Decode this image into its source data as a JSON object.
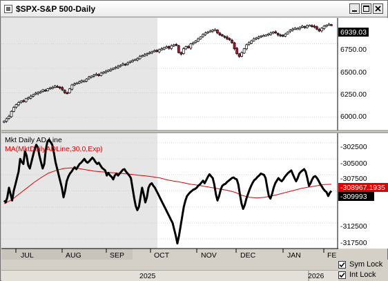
{
  "window": {
    "title": "$SPX-S&P 500-Daily",
    "icon": "chart-window-icon",
    "buttons": [
      "minimize-icon",
      "maximize-icon",
      "close-icon"
    ]
  },
  "colors": {
    "up_candle": "#ffffff",
    "down_candle": "#c8102e",
    "ad_line": "#000000",
    "moving_average": "#e00000",
    "legend_indicator": "#000000",
    "legend_ma": "#e00000",
    "shade": "#e6e6e6",
    "grid": "#cfcfcf",
    "price_box": "#000000",
    "ma_box": "#e00000"
  },
  "price_panel": {
    "axis_labels": [
      "6000.00",
      "6250.00",
      "6500.00",
      "6750.00"
    ],
    "current_price": "6939.03"
  },
  "indicator_panel": {
    "legend_line1": "Mkt Daily AD Line",
    "legend_line2": "MA(MktDailyADLine,30,0,Exp)",
    "axis_labels": [
      "-302500",
      "-305000",
      "-307500",
      "-310000",
      "-312500",
      "-315000",
      "-317500"
    ],
    "current_ma": "-308967.1935",
    "current_value": "-309993"
  },
  "x_axis": {
    "months": [
      "JUL",
      "AUG",
      "SEP",
      "OCT",
      "NOV",
      "DEC",
      "JAN",
      "FE"
    ],
    "years": [
      "2025",
      "2026"
    ]
  },
  "controls": {
    "sym_lock_label": "Sym Lock",
    "sym_lock_checked": true,
    "int_lock_label": "Int Lock",
    "int_lock_checked": true
  },
  "chart_data": [
    {
      "type": "candlestick",
      "title": "$SPX-S&P 500-Daily",
      "x_range": [
        "2025-06-23",
        "2026-01-30"
      ],
      "ylim": [
        5900,
        7000
      ],
      "last_value": 6939.03,
      "series": [
        {
          "close": [
            5960,
            5985,
            6010,
            6060,
            6100,
            6130,
            6150,
            6165,
            6160,
            6190,
            6200,
            6215,
            6230,
            6245,
            6255,
            6260,
            6280,
            6270,
            6290,
            6300,
            6305,
            6320,
            6310,
            6300,
            6280,
            6250,
            6245,
            6290,
            6330,
            6340,
            6350,
            6360,
            6375,
            6370,
            6390,
            6410,
            6420,
            6430,
            6440,
            6425,
            6450,
            6460,
            6470,
            6480,
            6490,
            6500,
            6510,
            6520,
            6530,
            6545,
            6540,
            6555,
            6570,
            6580,
            6590,
            6600,
            6620,
            6630,
            6640,
            6650,
            6660,
            6670,
            6680,
            6670,
            6690,
            6700,
            6710,
            6720,
            6705,
            6730,
            6740,
            6735,
            6660,
            6645,
            6700,
            6720,
            6710,
            6750,
            6760,
            6780,
            6800,
            6820,
            6845,
            6860,
            6870,
            6880,
            6890,
            6895,
            6860,
            6840,
            6830,
            6820,
            6800,
            6790,
            6760,
            6700,
            6650,
            6620,
            6660,
            6700,
            6740,
            6760,
            6780,
            6800,
            6810,
            6820,
            6830,
            6835,
            6840,
            6850,
            6860,
            6870,
            6860,
            6840,
            6835,
            6830,
            6850,
            6870,
            6890,
            6900,
            6910,
            6905,
            6920,
            6930,
            6915,
            6935,
            6940,
            6930,
            6920,
            6900,
            6880,
            6910,
            6930,
            6940,
            6950,
            6939
          ]
        }
      ]
    },
    {
      "type": "line",
      "x_range": [
        "2025-06-23",
        "2026-01-30"
      ],
      "ylim": [
        -319000,
        -301000
      ],
      "series": [
        {
          "name": "Mkt Daily AD Line",
          "values": [
            -311500,
            -311800,
            -311000,
            -309500,
            -310500,
            -311500,
            -310000,
            -309000,
            -308000,
            -307000,
            -305000,
            -305500,
            -305800,
            -303800,
            -304500,
            -306000,
            -306500,
            -305500,
            -304500,
            -303500,
            -302800,
            -303200,
            -304500,
            -305500,
            -306500,
            -305800,
            -303500,
            -302300,
            -302000,
            -302400,
            -302800,
            -304000,
            -305500,
            -306500,
            -307500,
            -308500,
            -309500,
            -311000,
            -310000,
            -308500,
            -307800,
            -307300,
            -307000,
            -306600,
            -306300,
            -306600,
            -306200,
            -305800,
            -305600,
            -305300,
            -305000,
            -305400,
            -305600,
            -305400,
            -305100,
            -304800,
            -305100,
            -305500,
            -305800,
            -305600,
            -306000,
            -306400,
            -306600,
            -306800,
            -307600,
            -307200,
            -307600,
            -307800,
            -308200,
            -307600,
            -307300,
            -307600,
            -307300,
            -307000,
            -306700,
            -306600,
            -307000,
            -307300,
            -307600,
            -308000,
            -309500,
            -311000,
            -312300,
            -313000,
            -312500,
            -311000,
            -309500,
            -310500,
            -311800,
            -311000,
            -309500,
            -309000,
            -308800,
            -309200,
            -309500,
            -310000,
            -310500,
            -311000,
            -311500,
            -312000,
            -312500,
            -313000,
            -313500,
            -314000,
            -314500,
            -315000,
            -316000,
            -317000,
            -318200,
            -317000,
            -315500,
            -314000,
            -312500,
            -311500,
            -310800,
            -310500,
            -310200,
            -310000,
            -309800,
            -309700,
            -309500,
            -309200,
            -309000,
            -308700,
            -308400,
            -308800,
            -308300,
            -307800,
            -307400,
            -307700,
            -308000,
            -309000,
            -310500,
            -311500,
            -310800,
            -309800,
            -309200,
            -309000,
            -308900,
            -308600,
            -308400,
            -308200,
            -308000,
            -307900,
            -308100,
            -308200,
            -309000,
            -310600,
            -312000,
            -312800,
            -312200,
            -311200,
            -310500,
            -309800,
            -309200,
            -308700,
            -308300,
            -308100,
            -307800,
            -307600,
            -307300,
            -307400,
            -307500,
            -308000,
            -309500,
            -310800,
            -311200,
            -310500,
            -309500,
            -308800,
            -308400,
            -308000,
            -308300,
            -308500,
            -308200,
            -307800,
            -307500,
            -307200,
            -307000,
            -306800,
            -307400,
            -308000,
            -308500,
            -308000,
            -307300,
            -307000,
            -306800,
            -306600,
            -307000,
            -308000,
            -309200,
            -308800,
            -308200,
            -307800,
            -307700,
            -308000,
            -308400,
            -308900,
            -309300,
            -309700,
            -310000,
            -310200,
            -310800,
            -310300,
            -309993
          ]
        },
        {
          "name": "MA(MktDailyADLine,30,0,Exp)",
          "values": [
            -312000,
            -311400,
            -310500,
            -309600,
            -308700,
            -307900,
            -307200,
            -306800,
            -306500,
            -306400,
            -306500,
            -306700,
            -306900,
            -307000,
            -307100,
            -307200,
            -307300,
            -307400,
            -307550,
            -307650,
            -307800,
            -308000,
            -308300,
            -308500,
            -308700,
            -308950,
            -309100,
            -309300,
            -309500,
            -309700,
            -309900,
            -310200,
            -310700,
            -311000,
            -311100,
            -311000,
            -310800,
            -310500,
            -310200,
            -309900,
            -309600,
            -309400,
            -309200,
            -309000,
            -308967
          ]
        }
      ]
    }
  ]
}
